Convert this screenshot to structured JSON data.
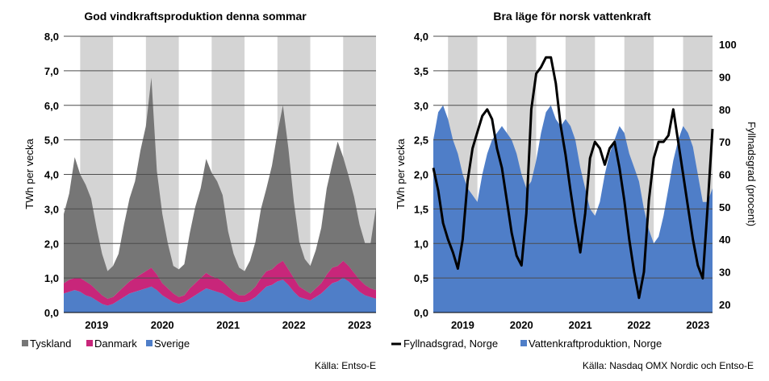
{
  "colors": {
    "shade": "#d4d4d4",
    "tyskland": "#767676",
    "danmark": "#c8267a",
    "sverige": "#4f7ec8",
    "vattenkraft": "#4f7ec8",
    "fyllnadsgrad": "#000000",
    "grid": "#4d4d4d"
  },
  "chart_data": [
    {
      "type": "area",
      "title": "God vindkraftsproduktion denna sommar",
      "ylabel": "TWh per vecka",
      "ylim": [
        0,
        8
      ],
      "yticks": [
        "0,0",
        "1,0",
        "2,0",
        "3,0",
        "4,0",
        "5,0",
        "6,0",
        "7,0",
        "8,0"
      ],
      "xticks": [
        "2019",
        "2020",
        "2021",
        "2022",
        "2023"
      ],
      "x_range": [
        "2018-10",
        "2023-07"
      ],
      "shaded_periods": [
        [
          "2019-01",
          "2019-07"
        ],
        [
          "2020-01",
          "2020-07"
        ],
        [
          "2021-01",
          "2021-07"
        ],
        [
          "2022-01",
          "2022-07"
        ],
        [
          "2023-01",
          "2023-07"
        ]
      ],
      "stacked": true,
      "x": [
        "2018-10",
        "2018-11",
        "2018-12",
        "2019-01",
        "2019-02",
        "2019-03",
        "2019-04",
        "2019-05",
        "2019-06",
        "2019-07",
        "2019-08",
        "2019-09",
        "2019-10",
        "2019-11",
        "2019-12",
        "2020-01",
        "2020-02",
        "2020-03",
        "2020-04",
        "2020-05",
        "2020-06",
        "2020-07",
        "2020-08",
        "2020-09",
        "2020-10",
        "2020-11",
        "2020-12",
        "2021-01",
        "2021-02",
        "2021-03",
        "2021-04",
        "2021-05",
        "2021-06",
        "2021-07",
        "2021-08",
        "2021-09",
        "2021-10",
        "2021-11",
        "2021-12",
        "2022-01",
        "2022-02",
        "2022-03",
        "2022-04",
        "2022-05",
        "2022-06",
        "2022-07",
        "2022-08",
        "2022-09",
        "2022-10",
        "2022-11",
        "2022-12",
        "2023-01",
        "2023-02",
        "2023-03",
        "2023-04",
        "2023-05",
        "2023-06",
        "2023-07"
      ],
      "series": [
        {
          "name": "Sverige",
          "values": [
            0.55,
            0.6,
            0.65,
            0.6,
            0.5,
            0.45,
            0.35,
            0.25,
            0.2,
            0.25,
            0.35,
            0.45,
            0.55,
            0.6,
            0.65,
            0.7,
            0.75,
            0.65,
            0.5,
            0.4,
            0.3,
            0.25,
            0.3,
            0.4,
            0.5,
            0.6,
            0.7,
            0.65,
            0.6,
            0.55,
            0.45,
            0.35,
            0.3,
            0.3,
            0.35,
            0.45,
            0.6,
            0.75,
            0.8,
            0.9,
            0.95,
            0.8,
            0.6,
            0.45,
            0.4,
            0.35,
            0.45,
            0.55,
            0.7,
            0.85,
            0.9,
            1.0,
            0.9,
            0.75,
            0.6,
            0.5,
            0.45,
            0.4
          ]
        },
        {
          "name": "Danmark",
          "values": [
            0.3,
            0.35,
            0.35,
            0.4,
            0.4,
            0.35,
            0.3,
            0.25,
            0.2,
            0.2,
            0.25,
            0.3,
            0.35,
            0.4,
            0.45,
            0.5,
            0.55,
            0.45,
            0.35,
            0.3,
            0.25,
            0.2,
            0.2,
            0.3,
            0.35,
            0.4,
            0.45,
            0.4,
            0.4,
            0.35,
            0.3,
            0.25,
            0.2,
            0.2,
            0.25,
            0.3,
            0.4,
            0.45,
            0.45,
            0.5,
            0.55,
            0.45,
            0.4,
            0.3,
            0.25,
            0.2,
            0.25,
            0.3,
            0.4,
            0.45,
            0.45,
            0.5,
            0.45,
            0.4,
            0.35,
            0.3,
            0.25,
            0.25
          ]
        },
        {
          "name": "Tyskland",
          "values": [
            2.0,
            2.5,
            3.5,
            3.0,
            2.8,
            2.5,
            1.8,
            1.2,
            0.8,
            0.9,
            1.1,
            1.8,
            2.4,
            2.8,
            3.6,
            4.2,
            5.5,
            3.0,
            2.0,
            1.3,
            0.8,
            0.8,
            0.9,
            1.6,
            2.2,
            2.6,
            3.3,
            3.0,
            2.8,
            2.5,
            1.6,
            1.1,
            0.8,
            0.7,
            0.9,
            1.3,
            2.0,
            2.4,
            3.0,
            3.8,
            4.5,
            3.5,
            2.2,
            1.3,
            0.9,
            0.8,
            1.1,
            1.6,
            2.5,
            3.0,
            3.6,
            3.0,
            2.6,
            2.2,
            1.6,
            1.2,
            1.3,
            2.4
          ]
        }
      ],
      "legend_position": "bottom",
      "legend": [
        "Tyskland",
        "Danmark",
        "Sverige"
      ],
      "grid": true,
      "source": "Källa: Entso-E"
    },
    {
      "type": "area",
      "title": "Bra läge för norsk vattenkraft",
      "ylabel": "TWh per vecka",
      "ylabel_right": "Fyllnadsgrad (procent)",
      "ylim": [
        0,
        4
      ],
      "ylim_right": [
        17.5,
        102.5
      ],
      "yticks": [
        "0,0",
        "0,5",
        "1,0",
        "1,5",
        "2,0",
        "2,5",
        "3,0",
        "3,5",
        "4,0"
      ],
      "yticks_right": [
        "20",
        "30",
        "40",
        "50",
        "60",
        "70",
        "80",
        "90",
        "100"
      ],
      "xticks": [
        "2019",
        "2020",
        "2021",
        "2022",
        "2023"
      ],
      "x_range": [
        "2018-10",
        "2023-07"
      ],
      "shaded_periods": [
        [
          "2019-01",
          "2019-07"
        ],
        [
          "2020-01",
          "2020-07"
        ],
        [
          "2021-01",
          "2021-07"
        ],
        [
          "2022-01",
          "2022-07"
        ],
        [
          "2023-01",
          "2023-07"
        ]
      ],
      "x": [
        "2018-10",
        "2018-11",
        "2018-12",
        "2019-01",
        "2019-02",
        "2019-03",
        "2019-04",
        "2019-05",
        "2019-06",
        "2019-07",
        "2019-08",
        "2019-09",
        "2019-10",
        "2019-11",
        "2019-12",
        "2020-01",
        "2020-02",
        "2020-03",
        "2020-04",
        "2020-05",
        "2020-06",
        "2020-07",
        "2020-08",
        "2020-09",
        "2020-10",
        "2020-11",
        "2020-12",
        "2021-01",
        "2021-02",
        "2021-03",
        "2021-04",
        "2021-05",
        "2021-06",
        "2021-07",
        "2021-08",
        "2021-09",
        "2021-10",
        "2021-11",
        "2021-12",
        "2022-01",
        "2022-02",
        "2022-03",
        "2022-04",
        "2022-05",
        "2022-06",
        "2022-07",
        "2022-08",
        "2022-09",
        "2022-10",
        "2022-11",
        "2022-12",
        "2023-01",
        "2023-02",
        "2023-03",
        "2023-04",
        "2023-05",
        "2023-06",
        "2023-07"
      ],
      "series": [
        {
          "name": "Vattenkraftproduktion, Norge",
          "axis": "left",
          "values": [
            2.5,
            2.9,
            3.0,
            2.8,
            2.5,
            2.3,
            2.0,
            1.8,
            1.7,
            1.6,
            2.0,
            2.3,
            2.5,
            2.6,
            2.7,
            2.6,
            2.5,
            2.3,
            2.0,
            1.8,
            1.9,
            2.2,
            2.6,
            2.9,
            3.0,
            2.8,
            2.7,
            2.8,
            2.7,
            2.5,
            2.1,
            1.8,
            1.5,
            1.4,
            1.6,
            2.0,
            2.3,
            2.5,
            2.7,
            2.6,
            2.3,
            2.1,
            1.9,
            1.5,
            1.2,
            1.0,
            1.1,
            1.4,
            1.8,
            2.2,
            2.5,
            2.7,
            2.6,
            2.4,
            2.0,
            1.6,
            1.6,
            1.8
          ]
        },
        {
          "name": "Fyllnadsgrad, Norge",
          "axis": "right",
          "values": [
            62,
            55,
            45,
            40,
            36,
            31,
            40,
            58,
            68,
            73,
            78,
            80,
            77,
            68,
            62,
            52,
            42,
            35,
            32,
            48,
            80,
            91,
            93,
            96,
            96,
            88,
            75,
            66,
            55,
            45,
            36,
            48,
            65,
            70,
            68,
            63,
            68,
            70,
            62,
            52,
            40,
            30,
            22,
            30,
            52,
            65,
            70,
            70,
            72,
            80,
            70,
            60,
            50,
            40,
            32,
            28,
            50,
            74
          ]
        }
      ],
      "legend_position": "bottom",
      "legend": [
        "Fyllnadsgrad, Norge",
        "Vattenkraftproduktion, Norge"
      ],
      "grid": true,
      "source": "Källa: Nasdaq OMX Nordic och Entso-E"
    }
  ]
}
